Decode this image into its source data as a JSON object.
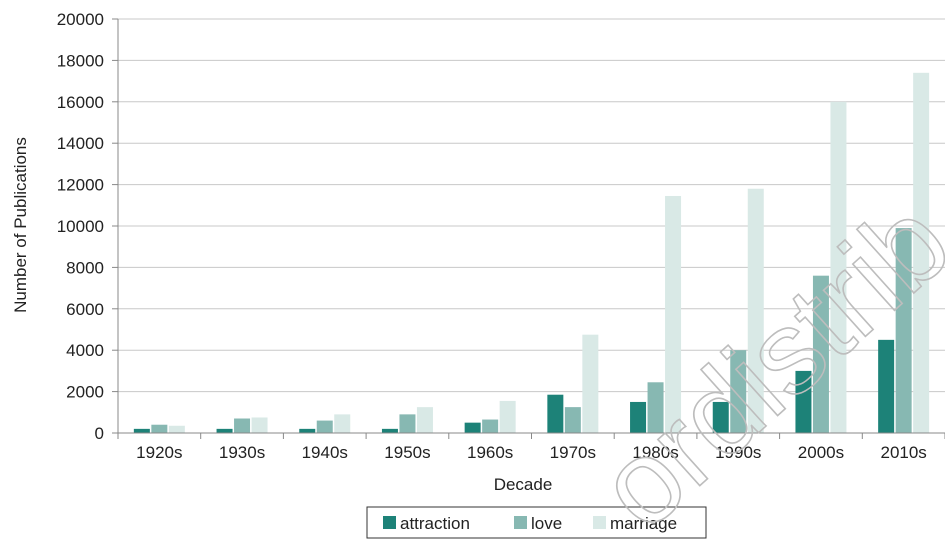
{
  "chart_data": {
    "type": "bar",
    "xlabel": "Decade",
    "ylabel": "Number of Publications",
    "ylim": [
      0,
      20000
    ],
    "yticks": [
      "0",
      "2000",
      "4000",
      "6000",
      "8000",
      "10000",
      "12000",
      "14000",
      "16000",
      "18000",
      "20000"
    ],
    "categories": [
      "1920s",
      "1930s",
      "1940s",
      "1950s",
      "1960s",
      "1970s",
      "1980s",
      "1990s",
      "2000s",
      "2010s"
    ],
    "series": [
      {
        "name": "attraction",
        "color": "#1d8278",
        "values": [
          200,
          200,
          200,
          200,
          500,
          1850,
          1500,
          1500,
          3000,
          4500
        ]
      },
      {
        "name": "love",
        "color": "#87b8b2",
        "values": [
          400,
          700,
          600,
          900,
          650,
          1250,
          2450,
          4000,
          7600,
          9900
        ]
      },
      {
        "name": "marriage",
        "color": "#d9e9e6",
        "values": [
          350,
          750,
          900,
          1250,
          1550,
          4750,
          11450,
          11800,
          16000,
          17400
        ]
      }
    ],
    "grid": true,
    "legend_position": "bottom",
    "watermark": "ordistrib"
  }
}
